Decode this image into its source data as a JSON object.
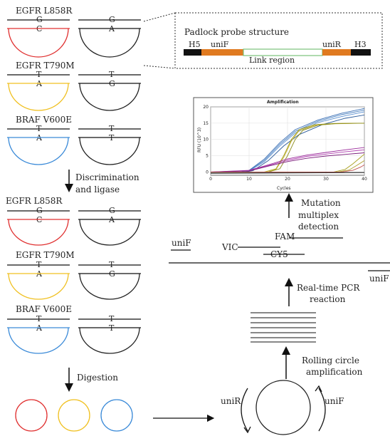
{
  "colors": {
    "red": "#e03030",
    "yellow": "#f0c020",
    "blue": "#3a8ad8",
    "black": "#222222",
    "orange": "#e07a20",
    "green": "#7ac27a"
  },
  "mutations_top": [
    {
      "name": "EGFR L858R",
      "probe_base": "G",
      "target_base": "C",
      "mut_top": "G",
      "mut_bottom": "A",
      "color": "red"
    },
    {
      "name": "EGFR T790M",
      "probe_base": "T",
      "target_base": "A",
      "mut_top": "T",
      "mut_bottom": "G",
      "color": "yellow"
    },
    {
      "name": "BRAF V600E",
      "probe_base": "T",
      "target_base": "A",
      "mut_top": "T",
      "mut_bottom": "T",
      "color": "blue"
    }
  ],
  "mutations_bottom": [
    {
      "name": "EGFR L858R",
      "probe_base": "G",
      "target_base": "C",
      "mut_top": "G",
      "mut_bottom": "A",
      "color": "red"
    },
    {
      "name": "EGFR T790M",
      "probe_base": "T",
      "target_base": "A",
      "mut_top": "T",
      "mut_bottom": "G",
      "color": "yellow"
    },
    {
      "name": "BRAF V600E",
      "probe_base": "T",
      "target_base": "A",
      "mut_top": "T",
      "mut_bottom": "T",
      "color": "blue"
    }
  ],
  "steps": {
    "discrimination_line1": "Discrimination",
    "discrimination_line2": "and ligase",
    "digestion": "Digestion",
    "rca_line1": "Rolling circle",
    "rca_line2": "amplification",
    "pcr_line1": "Real-time PCR",
    "pcr_line2": "reaction",
    "detect_line1": "Mutation",
    "detect_line2": "multiplex",
    "detect_line3": "detection"
  },
  "padlock": {
    "title": "Padlock probe structure",
    "h5": "H5",
    "unif": "uniF",
    "unir": "uniR",
    "h3": "H3",
    "link": "Link region"
  },
  "primers": {
    "unif_left": "uniF",
    "unif_right": "uniF",
    "unir_right": "uniF",
    "vic": "VIC",
    "fam": "FAM",
    "cy5": "CY5",
    "circle_left": "uniR",
    "circle_right": "uniF"
  },
  "chart_data": {
    "type": "line",
    "title": "Amplification",
    "xlabel": "Cycles",
    "ylabel": "RFU (10^3)",
    "xlim": [
      0,
      40
    ],
    "ylim": [
      -1,
      20
    ],
    "xticks": [
      0,
      10,
      20,
      30,
      40
    ],
    "yticks": [
      0,
      5,
      10,
      15,
      20
    ],
    "series": [
      {
        "color": "#3a6fb5",
        "values": [
          [
            0,
            0
          ],
          [
            8,
            0
          ],
          [
            10,
            0.5
          ],
          [
            14,
            4
          ],
          [
            18,
            9
          ],
          [
            22,
            13
          ],
          [
            28,
            16
          ],
          [
            34,
            18
          ],
          [
            40,
            19.5
          ]
        ]
      },
      {
        "color": "#4a80c0",
        "values": [
          [
            0,
            0
          ],
          [
            8,
            0
          ],
          [
            10,
            0.4
          ],
          [
            14,
            3.6
          ],
          [
            18,
            8.5
          ],
          [
            22,
            12.5
          ],
          [
            28,
            15.6
          ],
          [
            34,
            17.6
          ],
          [
            40,
            19
          ]
        ]
      },
      {
        "color": "#5a8fd0",
        "values": [
          [
            0,
            0
          ],
          [
            8,
            0
          ],
          [
            10,
            0.3
          ],
          [
            14,
            3.2
          ],
          [
            18,
            8
          ],
          [
            22,
            12
          ],
          [
            28,
            15.2
          ],
          [
            34,
            17
          ],
          [
            40,
            18.5
          ]
        ]
      },
      {
        "color": "#2a5a9a",
        "values": [
          [
            0,
            0
          ],
          [
            9,
            0
          ],
          [
            11,
            0.4
          ],
          [
            15,
            3.5
          ],
          [
            19,
            8
          ],
          [
            23,
            11.5
          ],
          [
            29,
            14.5
          ],
          [
            35,
            16.5
          ],
          [
            40,
            17.5
          ]
        ]
      },
      {
        "color": "#a8a020",
        "values": [
          [
            0,
            0
          ],
          [
            14,
            0
          ],
          [
            17,
            1
          ],
          [
            19,
            5
          ],
          [
            21,
            10
          ],
          [
            23,
            13
          ],
          [
            27,
            14.5
          ],
          [
            32,
            14.9
          ],
          [
            40,
            15
          ]
        ]
      },
      {
        "color": "#c0b030",
        "values": [
          [
            0,
            0
          ],
          [
            14,
            0
          ],
          [
            17,
            0.8
          ],
          [
            19,
            4.5
          ],
          [
            21,
            9.5
          ],
          [
            23,
            12.7
          ],
          [
            27,
            14.3
          ],
          [
            32,
            14.8
          ],
          [
            40,
            15
          ]
        ]
      },
      {
        "color": "#8a8a18",
        "values": [
          [
            0,
            0
          ],
          [
            15,
            0
          ],
          [
            18,
            1
          ],
          [
            20,
            5
          ],
          [
            22,
            10
          ],
          [
            24,
            12.8
          ],
          [
            28,
            14.4
          ],
          [
            33,
            14.9
          ],
          [
            40,
            15
          ]
        ]
      },
      {
        "color": "#9a2a9a",
        "values": [
          [
            0,
            0
          ],
          [
            10,
            0.5
          ],
          [
            15,
            2.2
          ],
          [
            20,
            4
          ],
          [
            25,
            5.2
          ],
          [
            30,
            6
          ],
          [
            35,
            6.8
          ],
          [
            40,
            7.5
          ]
        ]
      },
      {
        "color": "#b040b0",
        "values": [
          [
            0,
            0
          ],
          [
            10,
            0.4
          ],
          [
            15,
            2
          ],
          [
            20,
            3.6
          ],
          [
            25,
            4.8
          ],
          [
            30,
            5.5
          ],
          [
            35,
            6.2
          ],
          [
            40,
            6.8
          ]
        ]
      },
      {
        "color": "#7a1a7a",
        "values": [
          [
            0,
            0
          ],
          [
            10,
            0.3
          ],
          [
            15,
            1.8
          ],
          [
            20,
            3.2
          ],
          [
            25,
            4.2
          ],
          [
            30,
            4.9
          ],
          [
            35,
            5.4
          ],
          [
            40,
            5.9
          ]
        ]
      },
      {
        "color": "#a8a020",
        "values": [
          [
            0,
            0
          ],
          [
            32,
            0
          ],
          [
            35,
            0.8
          ],
          [
            37,
            2.5
          ],
          [
            39,
            4.5
          ],
          [
            40,
            5.5
          ]
        ]
      },
      {
        "color": "#b0a030",
        "values": [
          [
            0,
            0
          ],
          [
            33,
            0
          ],
          [
            36,
            0.6
          ],
          [
            38,
            2
          ],
          [
            40,
            3.5
          ]
        ]
      },
      {
        "color": "#c05050",
        "values": [
          [
            0,
            0
          ],
          [
            34,
            0
          ],
          [
            37,
            0.5
          ],
          [
            39,
            1.5
          ],
          [
            40,
            2.2
          ]
        ]
      },
      {
        "color": "#505050",
        "values": [
          [
            0,
            -0.2
          ],
          [
            20,
            -0.2
          ],
          [
            40,
            -0.1
          ]
        ]
      },
      {
        "color": "#303030",
        "values": [
          [
            0,
            -0.4
          ],
          [
            20,
            -0.3
          ],
          [
            40,
            -0.2
          ]
        ]
      }
    ]
  }
}
